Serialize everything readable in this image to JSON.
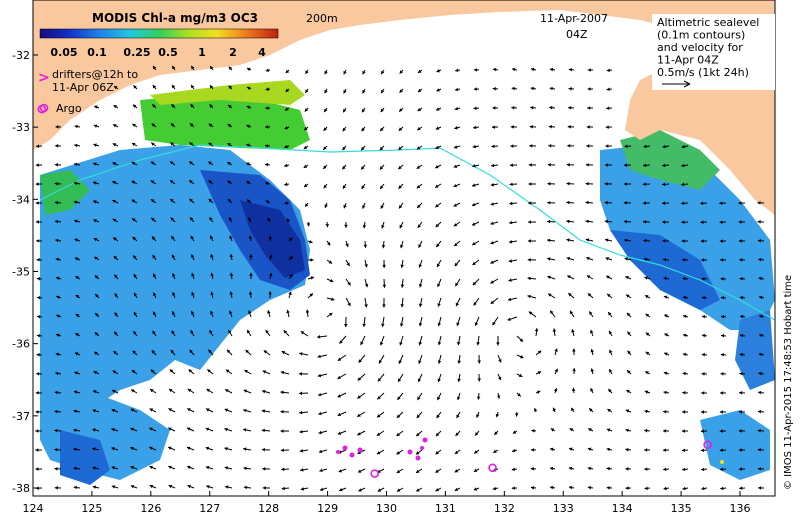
{
  "colorbar": {
    "title": "MODIS Chl-a mg/m3 OC3",
    "labels": [
      "0.05",
      "0.1",
      "0.25",
      "0.5",
      "1",
      "2",
      "4"
    ]
  },
  "contour_label": "200m",
  "datetime": {
    "date": "11-Apr-2007",
    "time": "04Z"
  },
  "legend": {
    "drifters_symbol": ">",
    "drifters_line1": "drifters@12h to",
    "drifters_line2": "11-Apr 06Z",
    "argo_label": "Argo",
    "altimetry_lines": [
      "Altimetric sealevel",
      "(0.1m contours)",
      "and velocity for",
      "11-Apr 04Z",
      "0.5m/s (1kt 24h)"
    ]
  },
  "credit": "© IMOS 11-Apr-2015 17:48:53 Hobart time",
  "axes": {
    "lon_ticks": [
      "124",
      "125",
      "126",
      "127",
      "128",
      "129",
      "130",
      "131",
      "132",
      "133",
      "134",
      "135",
      "136"
    ],
    "lat_ticks": [
      "-32",
      "-33",
      "-34",
      "-35",
      "-36",
      "-37",
      "-38"
    ]
  },
  "colors": {
    "land": "#f9c89f",
    "ocean": "#ffffff",
    "contour_200m": "#33dddd",
    "argo_marker": "#e020e0",
    "drifter": "#e020e0"
  },
  "argo_floats": [
    {
      "lon": 124.15,
      "lat": -32.75
    },
    {
      "lon": 129.8,
      "lat": -37.8
    },
    {
      "lon": 131.8,
      "lat": -37.72
    },
    {
      "lon": 135.45,
      "lat": -37.4
    }
  ]
}
